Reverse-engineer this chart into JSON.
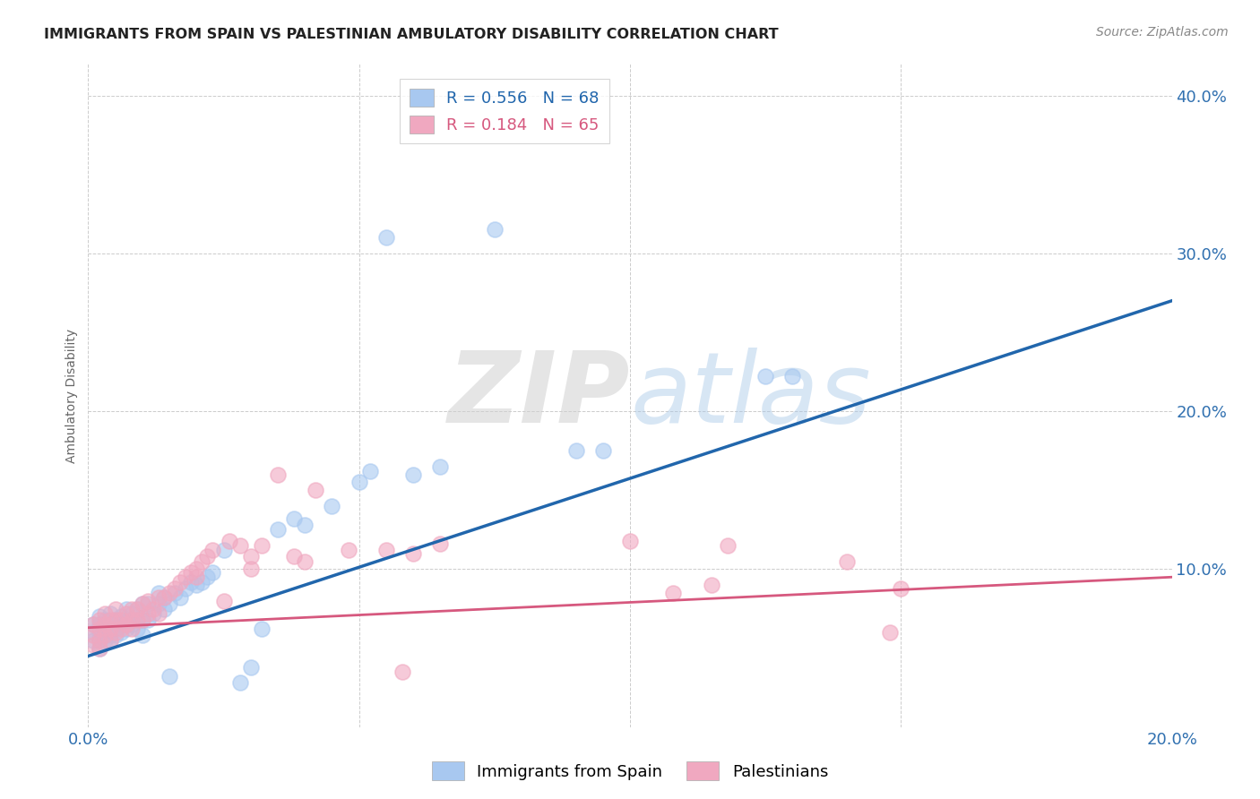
{
  "title": "IMMIGRANTS FROM SPAIN VS PALESTINIAN AMBULATORY DISABILITY CORRELATION CHART",
  "source": "Source: ZipAtlas.com",
  "ylabel": "Ambulatory Disability",
  "xlim": [
    0.0,
    0.2
  ],
  "ylim": [
    0.0,
    0.42
  ],
  "blue_R": 0.556,
  "blue_N": 68,
  "pink_R": 0.184,
  "pink_N": 65,
  "blue_color": "#A8C8F0",
  "pink_color": "#F0A8C0",
  "blue_line_color": "#2166AC",
  "pink_line_color": "#D6587E",
  "watermark_zip": "ZIP",
  "watermark_atlas": "atlas",
  "background_color": "#ffffff",
  "grid_color": "#cccccc",
  "blue_scatter_x": [
    0.001,
    0.001,
    0.001,
    0.002,
    0.002,
    0.002,
    0.002,
    0.002,
    0.003,
    0.003,
    0.003,
    0.003,
    0.004,
    0.004,
    0.004,
    0.004,
    0.005,
    0.005,
    0.005,
    0.006,
    0.006,
    0.006,
    0.007,
    0.007,
    0.007,
    0.008,
    0.008,
    0.009,
    0.009,
    0.009,
    0.01,
    0.01,
    0.01,
    0.011,
    0.011,
    0.012,
    0.013,
    0.013,
    0.014,
    0.014,
    0.015,
    0.015,
    0.016,
    0.017,
    0.018,
    0.019,
    0.02,
    0.021,
    0.022,
    0.023,
    0.025,
    0.028,
    0.03,
    0.032,
    0.035,
    0.038,
    0.04,
    0.045,
    0.05,
    0.052,
    0.055,
    0.06,
    0.065,
    0.075,
    0.09,
    0.095,
    0.125,
    0.13
  ],
  "blue_scatter_y": [
    0.055,
    0.06,
    0.065,
    0.05,
    0.055,
    0.06,
    0.065,
    0.07,
    0.055,
    0.058,
    0.062,
    0.068,
    0.055,
    0.058,
    0.065,
    0.072,
    0.058,
    0.062,
    0.068,
    0.06,
    0.065,
    0.07,
    0.062,
    0.068,
    0.075,
    0.065,
    0.072,
    0.062,
    0.068,
    0.075,
    0.058,
    0.068,
    0.078,
    0.068,
    0.078,
    0.072,
    0.078,
    0.085,
    0.075,
    0.082,
    0.032,
    0.078,
    0.085,
    0.082,
    0.088,
    0.092,
    0.09,
    0.092,
    0.095,
    0.098,
    0.112,
    0.028,
    0.038,
    0.062,
    0.125,
    0.132,
    0.128,
    0.14,
    0.155,
    0.162,
    0.31,
    0.16,
    0.165,
    0.315,
    0.175,
    0.175,
    0.222,
    0.222
  ],
  "pink_scatter_x": [
    0.001,
    0.001,
    0.001,
    0.002,
    0.002,
    0.002,
    0.002,
    0.003,
    0.003,
    0.003,
    0.004,
    0.004,
    0.004,
    0.005,
    0.005,
    0.005,
    0.006,
    0.006,
    0.007,
    0.007,
    0.008,
    0.008,
    0.008,
    0.009,
    0.009,
    0.01,
    0.01,
    0.011,
    0.011,
    0.012,
    0.013,
    0.013,
    0.014,
    0.015,
    0.016,
    0.017,
    0.018,
    0.019,
    0.02,
    0.02,
    0.021,
    0.022,
    0.023,
    0.025,
    0.026,
    0.028,
    0.03,
    0.03,
    0.032,
    0.035,
    0.038,
    0.04,
    0.042,
    0.048,
    0.055,
    0.058,
    0.06,
    0.065,
    0.1,
    0.108,
    0.115,
    0.118,
    0.14,
    0.148,
    0.15
  ],
  "pink_scatter_y": [
    0.052,
    0.058,
    0.065,
    0.05,
    0.055,
    0.062,
    0.068,
    0.058,
    0.065,
    0.072,
    0.055,
    0.062,
    0.068,
    0.06,
    0.068,
    0.075,
    0.062,
    0.068,
    0.065,
    0.072,
    0.062,
    0.068,
    0.075,
    0.068,
    0.075,
    0.068,
    0.078,
    0.072,
    0.08,
    0.075,
    0.072,
    0.082,
    0.082,
    0.085,
    0.088,
    0.092,
    0.095,
    0.098,
    0.095,
    0.1,
    0.105,
    0.108,
    0.112,
    0.08,
    0.118,
    0.115,
    0.1,
    0.108,
    0.115,
    0.16,
    0.108,
    0.105,
    0.15,
    0.112,
    0.112,
    0.035,
    0.11,
    0.116,
    0.118,
    0.085,
    0.09,
    0.115,
    0.105,
    0.06,
    0.088
  ]
}
